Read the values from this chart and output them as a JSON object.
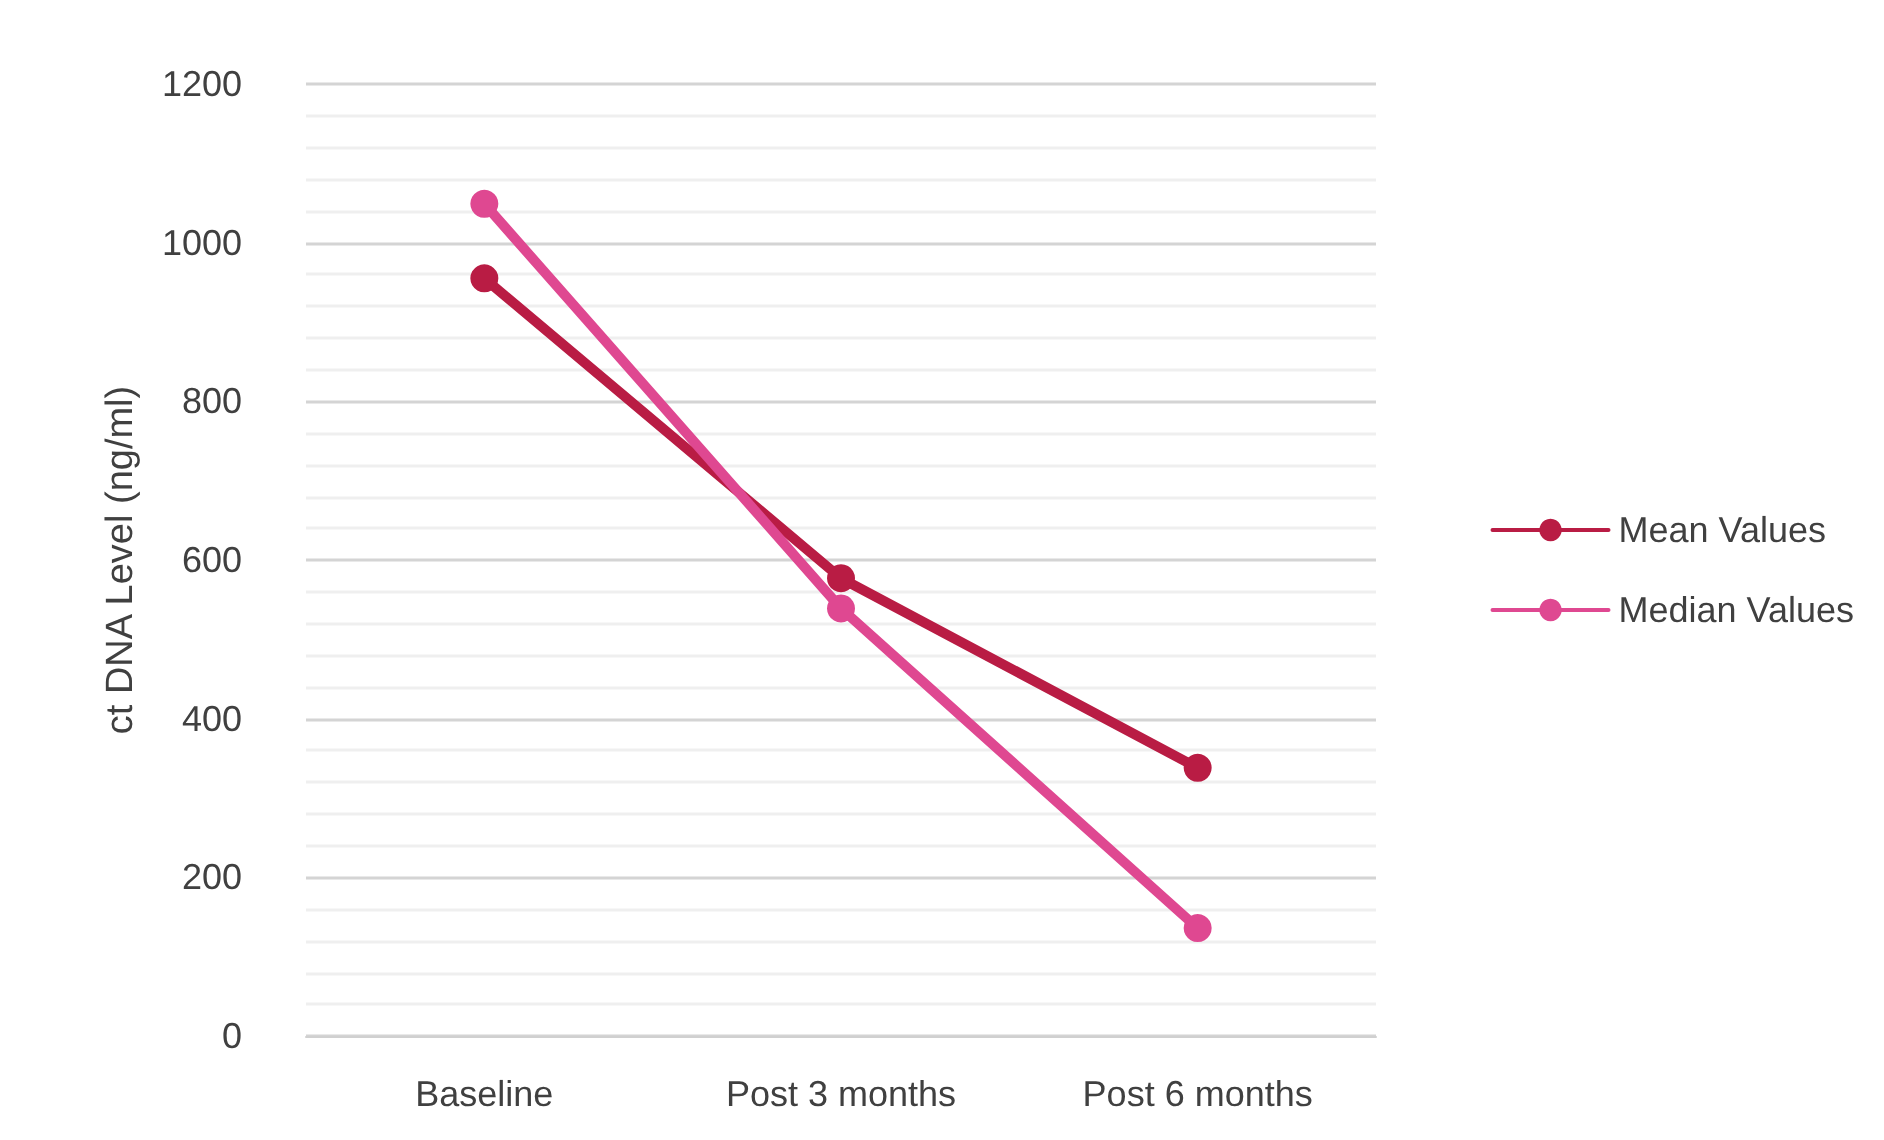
{
  "chart_data": {
    "type": "line",
    "ylabel": "ct DNA Level (ng/ml)",
    "categories": [
      "Baseline",
      "Post 3 months",
      "Post 6 months"
    ],
    "series": [
      {
        "name": "Mean Values",
        "color": "#b91c44",
        "values": [
          955,
          577,
          338
        ]
      },
      {
        "name": "Median Values",
        "color": "#df4891",
        "values": [
          1049,
          539,
          136
        ]
      }
    ],
    "ylim": [
      0,
      1200
    ],
    "yticks": [
      0,
      200,
      400,
      600,
      800,
      1000,
      1200
    ],
    "grid": "y",
    "legend": "right",
    "marker": "circle",
    "line_style": "solid"
  }
}
